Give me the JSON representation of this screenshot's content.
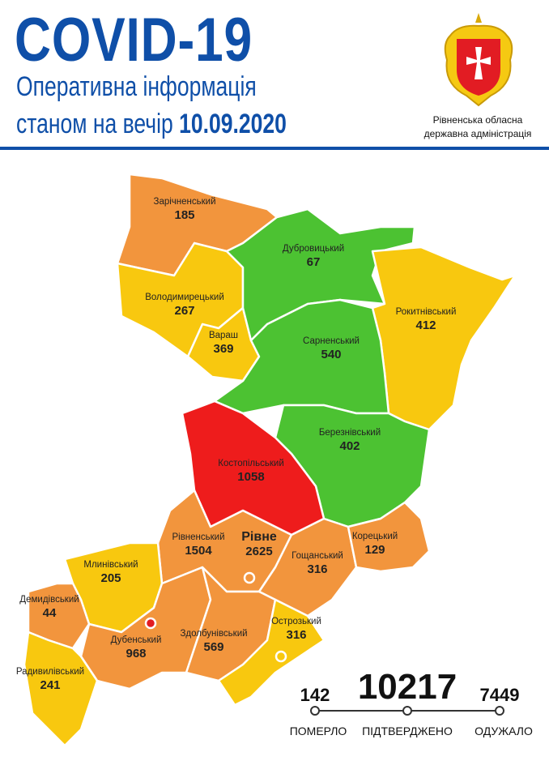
{
  "header": {
    "title": "COVID-19",
    "subtitle_line1": "Оперативна інформація",
    "subtitle_line2_prefix": "станом на вечір",
    "date": "10.09.2020",
    "organization_line1": "Рівненська обласна",
    "organization_line2": "державна адміністрація",
    "logo": "rivne-oblast-coat-of-arms"
  },
  "colors": {
    "brand": "#0f4fa8",
    "orange": "#f2953d",
    "yellow": "#f8c80f",
    "green": "#4cc232",
    "red": "#ee1c1c"
  },
  "regions": [
    {
      "name": "Зарічненський",
      "cases": "185",
      "color": "orange"
    },
    {
      "name": "Володимирецький",
      "cases": "267",
      "color": "yellow"
    },
    {
      "name": "Вараш",
      "cases": "369",
      "color": "yellow"
    },
    {
      "name": "Дубровицький",
      "cases": "67",
      "color": "green"
    },
    {
      "name": "Рокитнівський",
      "cases": "412",
      "color": "yellow"
    },
    {
      "name": "Сарненський",
      "cases": "540",
      "color": "green"
    },
    {
      "name": "Березнівський",
      "cases": "402",
      "color": "green"
    },
    {
      "name": "Костопільський",
      "cases": "1058",
      "color": "red"
    },
    {
      "name": "Рівненський",
      "cases": "1504",
      "color": "orange"
    },
    {
      "name": "Рівне",
      "cases": "2625",
      "color": "orange"
    },
    {
      "name": "Гощанський",
      "cases": "316",
      "color": "orange"
    },
    {
      "name": "Корецький",
      "cases": "129",
      "color": "orange"
    },
    {
      "name": "Млинівський",
      "cases": "205",
      "color": "yellow"
    },
    {
      "name": "Демидівський",
      "cases": "44",
      "color": "orange"
    },
    {
      "name": "Дубенський",
      "cases": "968",
      "color": "orange"
    },
    {
      "name": "Здолбунівський",
      "cases": "569",
      "color": "orange"
    },
    {
      "name": "Острозький",
      "cases": "316",
      "color": "yellow"
    },
    {
      "name": "Радивилівський",
      "cases": "241",
      "color": "yellow"
    }
  ],
  "stats": {
    "died": {
      "value": "142",
      "label": "ПОМЕРЛО"
    },
    "confirmed": {
      "value": "10217",
      "label": "ПІДТВЕРДЖЕНО"
    },
    "recovered": {
      "value": "7449",
      "label": "ОДУЖАЛО"
    }
  }
}
